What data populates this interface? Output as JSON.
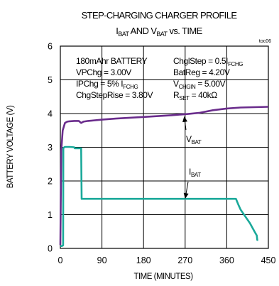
{
  "chart_data": {
    "type": "line",
    "title": "STEP-CHARGING CHARGER PROFILE",
    "subtitle": {
      "p1": "I",
      "s1": "BAT",
      "p2": " AND V",
      "s2": "BAT",
      "p3": " vs. TIME"
    },
    "figure_id": "toc06",
    "xlabel": "TIME (MINUTES)",
    "ylabel": "BATTERY VOLTAGE (V)",
    "xlim": [
      0,
      450
    ],
    "ylim": [
      0,
      6
    ],
    "xticks": [
      "0",
      "90",
      "180",
      "270",
      "360",
      "450"
    ],
    "yticks": [
      "0",
      "1",
      "2",
      "3",
      "4",
      "5",
      "6"
    ],
    "grid": true,
    "notes_left": [
      {
        "parts": [
          {
            "t": "180mAhr BATTERY",
            "sub": false
          }
        ]
      },
      {
        "parts": [
          {
            "t": "VPChg = 3.00V",
            "sub": false
          }
        ]
      },
      {
        "parts": [
          {
            "t": "IPChg = 5% I",
            "sub": false
          },
          {
            "t": "FCHG",
            "sub": true
          }
        ]
      },
      {
        "parts": [
          {
            "t": "ChgStepRise = 3.80V",
            "sub": false
          }
        ]
      }
    ],
    "notes_right": [
      {
        "parts": [
          {
            "t": "ChglStep = 0.5I",
            "sub": false
          },
          {
            "t": "FCHG",
            "sub": true
          }
        ]
      },
      {
        "parts": [
          {
            "t": "BatReg = 4.20V",
            "sub": false
          }
        ]
      },
      {
        "parts": [
          {
            "t": "V",
            "sub": false
          },
          {
            "t": "CHGIN",
            "sub": true
          },
          {
            "t": " = 5.00V",
            "sub": false
          }
        ]
      },
      {
        "parts": [
          {
            "t": "R",
            "sub": false
          },
          {
            "t": "SET",
            "sub": true
          },
          {
            "t": " = 40kΩ",
            "sub": false
          }
        ]
      }
    ],
    "series": [
      {
        "label": {
          "main": "V",
          "sub": "BAT"
        },
        "color": "#6a2c8c",
        "x": [
          0,
          2,
          5,
          10,
          15,
          20,
          30,
          40,
          45,
          50,
          60,
          90,
          120,
          180,
          240,
          270,
          300,
          330,
          360,
          390,
          420,
          450
        ],
        "y": [
          0.1,
          2.9,
          3.5,
          3.72,
          3.76,
          3.77,
          3.78,
          3.78,
          3.72,
          3.76,
          3.78,
          3.82,
          3.85,
          3.9,
          3.95,
          3.98,
          4.02,
          4.1,
          4.15,
          4.18,
          4.19,
          4.2
        ]
      },
      {
        "label": {
          "main": "I",
          "sub": "BAT"
        },
        "color": "#1aa99a",
        "x": [
          0,
          3,
          6,
          6.5,
          10,
          20,
          30,
          31,
          45,
          46,
          50,
          380,
          385,
          390,
          400,
          410,
          420,
          425,
          426,
          428
        ],
        "y": [
          0.07,
          0.07,
          0.09,
          2.98,
          3.01,
          3.01,
          3.0,
          2.97,
          2.97,
          1.47,
          1.47,
          1.47,
          1.3,
          1.15,
          0.95,
          0.75,
          0.5,
          0.38,
          0.25,
          0.25
        ]
      }
    ],
    "annotations": [
      {
        "series": 0,
        "at": [
          268,
          3.92
        ]
      },
      {
        "series": 1,
        "at": [
          270,
          1.47
        ]
      }
    ]
  }
}
